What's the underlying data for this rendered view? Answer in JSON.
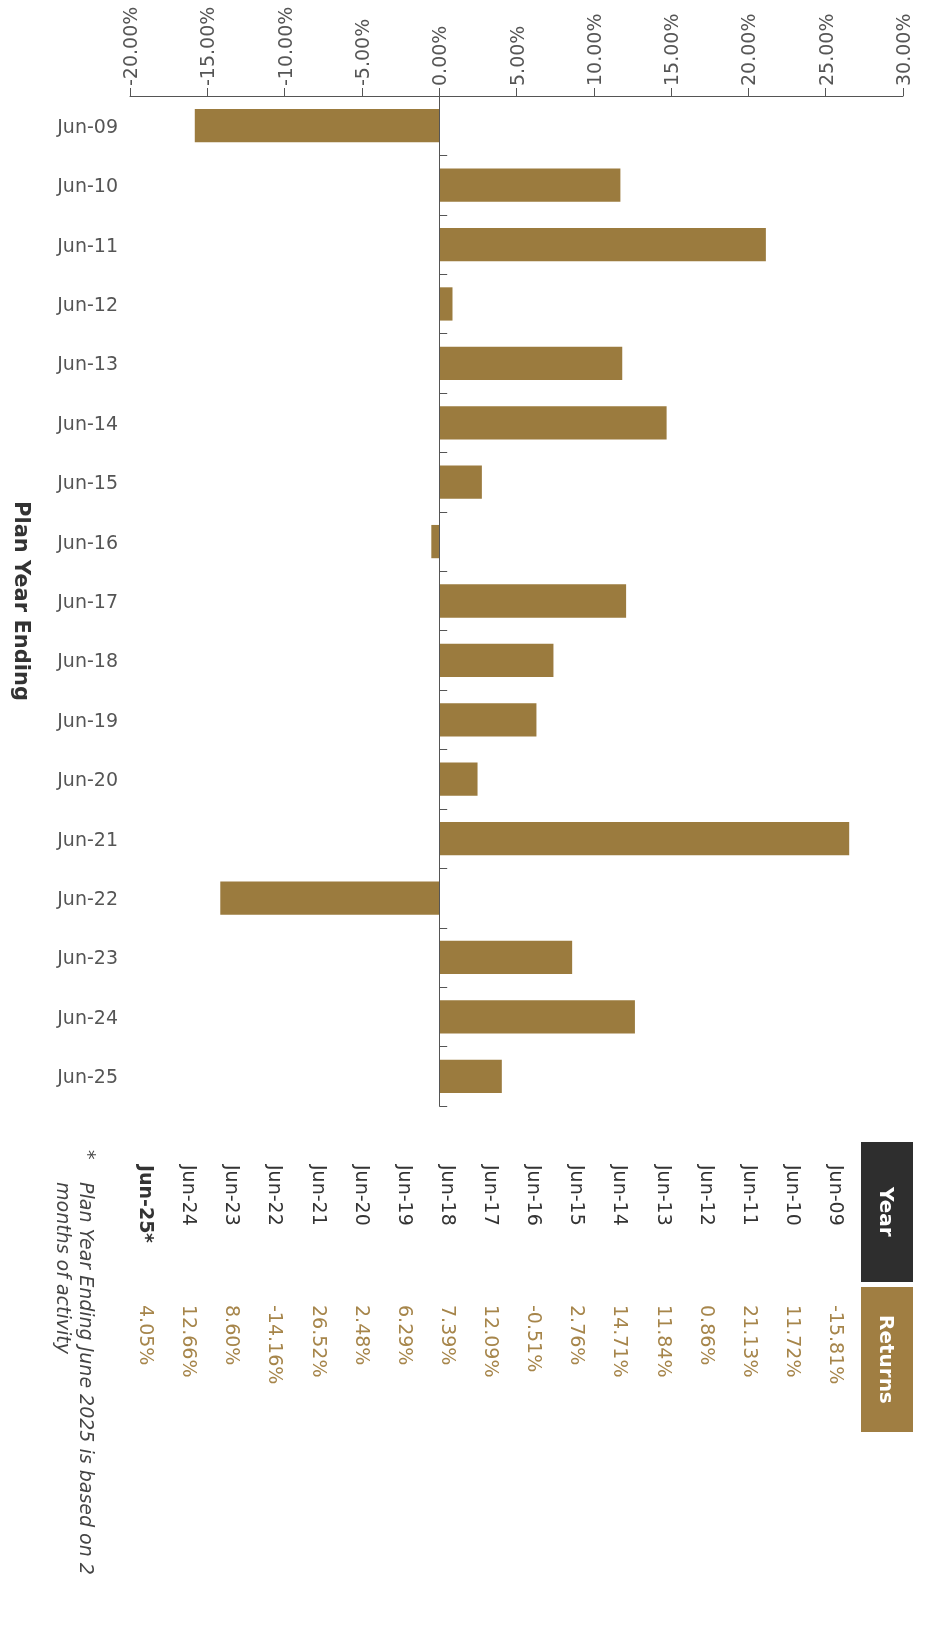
{
  "chart_data": {
    "type": "bar",
    "orientation": "horizontal",
    "ylabel": "Plan Year Ending",
    "categories": [
      "Jun-09",
      "Jun-10",
      "Jun-11",
      "Jun-12",
      "Jun-13",
      "Jun-14",
      "Jun-15",
      "Jun-16",
      "Jun-17",
      "Jun-18",
      "Jun-19",
      "Jun-20",
      "Jun-21",
      "Jun-22",
      "Jun-23",
      "Jun-24",
      "Jun-25"
    ],
    "values": [
      -15.81,
      11.72,
      21.13,
      0.86,
      11.84,
      14.71,
      2.76,
      -0.51,
      12.09,
      7.39,
      6.29,
      2.48,
      26.52,
      -14.16,
      8.6,
      12.66,
      4.05
    ],
    "color": "#9b7b3e",
    "xlim": [
      -20,
      30
    ],
    "xticks": [
      {
        "value": -20,
        "label": "-20.00%"
      },
      {
        "value": -15,
        "label": "-15.00%"
      },
      {
        "value": -10,
        "label": "-10.00%"
      },
      {
        "value": -5,
        "label": "-5.00%"
      },
      {
        "value": 0,
        "label": "0.00%"
      },
      {
        "value": 5,
        "label": "5.00%"
      },
      {
        "value": 10,
        "label": "10.00%"
      },
      {
        "value": 15,
        "label": "15.00%"
      },
      {
        "value": 20,
        "label": "20.00%"
      },
      {
        "value": 25,
        "label": "25.00%"
      },
      {
        "value": 30,
        "label": "30.00%"
      }
    ],
    "ref_lines": [
      {
        "axis": "x",
        "value": 0,
        "color": "#555555"
      }
    ],
    "annotations": [
      "Year",
      "Returns",
      "-15.81%",
      "11.72%",
      "21.13%",
      "0.86%",
      "11.84%",
      "14.71%",
      "2.76%",
      "-0.51%",
      "12.09%",
      "7.39%",
      "6.29%",
      "2.48%",
      "26.52%",
      "-14.16%",
      "8.60%",
      "12.66%",
      "4.05%",
      "*",
      "Plan Year Ending June 2025 is based on 2 months of activity"
    ]
  }
}
